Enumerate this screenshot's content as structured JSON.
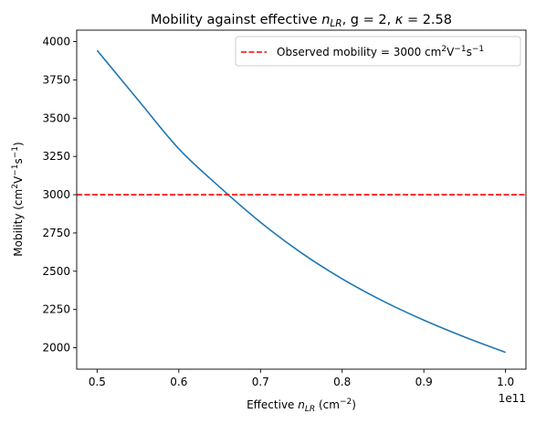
{
  "chart_data": {
    "type": "line",
    "title": {
      "prefix": "Mobility against effective ",
      "var": "n",
      "var_sub": "LR",
      "suffix": ", g = 2, ",
      "kappa": "κ",
      "kappa_value": " = 2.58"
    },
    "xlabel": {
      "prefix": "Effective ",
      "var": "n",
      "var_sub": "LR",
      "unit_open": " (cm",
      "unit_sup": "−2",
      "unit_close": ")"
    },
    "ylabel": {
      "prefix": "Mobility (cm",
      "sup1": "2",
      "mid1": "V",
      "sup2": "−1",
      "mid2": "s",
      "sup3": "−1",
      "suffix": ")"
    },
    "x_offset_label": "1e11",
    "xlim": [
      0.475,
      1.025
    ],
    "ylim": [
      1860,
      4075
    ],
    "xticks": [
      0.5,
      0.6,
      0.7,
      0.8,
      0.9,
      1.0
    ],
    "xtick_labels": [
      "0.5",
      "0.6",
      "0.7",
      "0.8",
      "0.9",
      "1.0"
    ],
    "yticks": [
      2000,
      2250,
      2500,
      2750,
      3000,
      3250,
      3500,
      3750,
      4000
    ],
    "ytick_labels": [
      "2000",
      "2250",
      "2500",
      "2750",
      "3000",
      "3250",
      "3500",
      "3750",
      "4000"
    ],
    "grid": false,
    "legend_position": "top-right",
    "series": [
      {
        "color": "#1f77b4",
        "style": "solid",
        "x": [
          0.5,
          0.55,
          0.6,
          0.65,
          0.7,
          0.75,
          0.8,
          0.85,
          0.9,
          0.95,
          1.0
        ],
        "y": [
          3943,
          3620,
          3300,
          3050,
          2820,
          2620,
          2450,
          2305,
          2180,
          2070,
          1970
        ]
      }
    ],
    "reference_lines": [
      {
        "orientation": "horizontal",
        "y": 3000,
        "color": "#ff0000",
        "style": "dashed",
        "legend": {
          "prefix": "Observed mobility = 3000 cm",
          "sup1": "2",
          "mid1": "V",
          "sup2": "−1",
          "mid2": "s",
          "sup3": "−1"
        }
      }
    ]
  }
}
